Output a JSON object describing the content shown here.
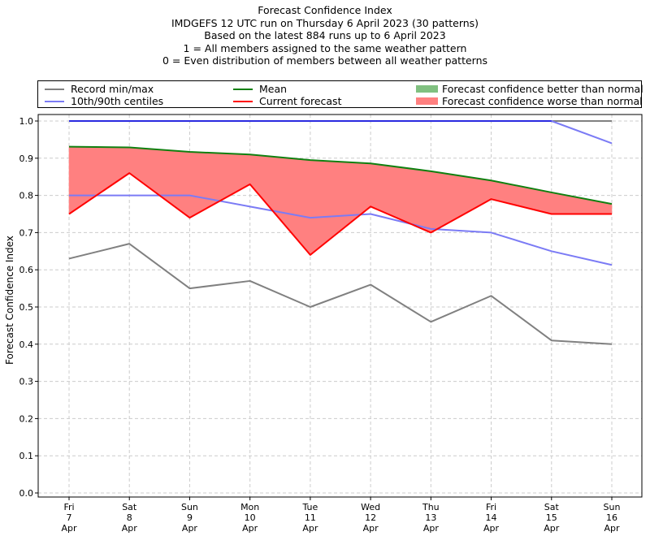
{
  "title_lines": [
    "Forecast Confidence Index",
    "IMDGEFS 12 UTC run on Thursday 6 April 2023 (30 patterns)",
    "Based on the latest 884 runs up to 6 April 2023",
    "1 = All members assigned to the same weather pattern",
    "0 = Even distribution of members between all weather patterns"
  ],
  "legend": {
    "record": "Record min/max",
    "centiles": "10th/90th centiles",
    "mean": "Mean",
    "current": "Current forecast",
    "better": "Forecast confidence better than normal",
    "worse": "Forecast confidence worse than normal"
  },
  "colors": {
    "record": "#808080",
    "centiles": "#7b7bf5",
    "upper_line": "#2a2ae0",
    "mean": "#108010",
    "current": "#ff0000",
    "better_fill": "#80c080",
    "worse_fill": "#ff8080"
  },
  "chart_data": {
    "type": "line",
    "ylabel": "Forecast Confidence Index",
    "ylim": [
      0,
      1
    ],
    "yticks": [
      "0.0",
      "0.1",
      "0.2",
      "0.3",
      "0.4",
      "0.5",
      "0.6",
      "0.7",
      "0.8",
      "0.9",
      "1.0"
    ],
    "grid": true,
    "legend_position": "top",
    "categories": [
      [
        "Fri",
        "7",
        "Apr"
      ],
      [
        "Sat",
        "8",
        "Apr"
      ],
      [
        "Sun",
        "9",
        "Apr"
      ],
      [
        "Mon",
        "10",
        "Apr"
      ],
      [
        "Tue",
        "11",
        "Apr"
      ],
      [
        "Wed",
        "12",
        "Apr"
      ],
      [
        "Thu",
        "13",
        "Apr"
      ],
      [
        "Fri",
        "14",
        "Apr"
      ],
      [
        "Sat",
        "15",
        "Apr"
      ],
      [
        "Sun",
        "16",
        "Apr"
      ]
    ],
    "series": [
      {
        "name": "Record min/max",
        "key": "record_min",
        "values": [
          0.63,
          0.67,
          0.55,
          0.57,
          0.5,
          0.56,
          0.46,
          0.53,
          0.41,
          0.4
        ]
      },
      {
        "name": "Record min/max",
        "key": "record_max",
        "values": [
          1.0,
          1.0,
          1.0,
          1.0,
          1.0,
          1.0,
          1.0,
          1.0,
          1.0,
          1.0
        ]
      },
      {
        "name": "10th/90th centiles",
        "key": "p10",
        "values": [
          0.8,
          0.8,
          0.8,
          0.77,
          0.74,
          0.75,
          0.71,
          0.7,
          0.65,
          0.613
        ]
      },
      {
        "name": "10th/90th centiles",
        "key": "p90",
        "values": [
          1.0,
          1.0,
          1.0,
          1.0,
          1.0,
          1.0,
          1.0,
          1.0,
          1.0,
          0.94
        ]
      },
      {
        "name": "Mean",
        "key": "mean",
        "values": [
          0.931,
          0.929,
          0.917,
          0.91,
          0.895,
          0.886,
          0.865,
          0.84,
          0.808,
          0.777
        ]
      },
      {
        "name": "Current forecast",
        "key": "current",
        "values": [
          0.75,
          0.86,
          0.74,
          0.83,
          0.64,
          0.77,
          0.7,
          0.79,
          0.75,
          0.75
        ]
      }
    ]
  }
}
